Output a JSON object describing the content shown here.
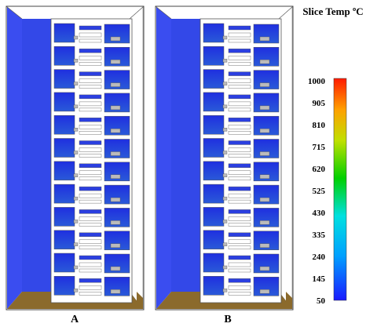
{
  "colorbar": {
    "title": "Slice Temp ºC",
    "ticks": [
      1000,
      905,
      810,
      715,
      620,
      525,
      430,
      335,
      240,
      145,
      50
    ]
  },
  "panels": [
    {
      "label": "A"
    },
    {
      "label": "B"
    }
  ]
}
